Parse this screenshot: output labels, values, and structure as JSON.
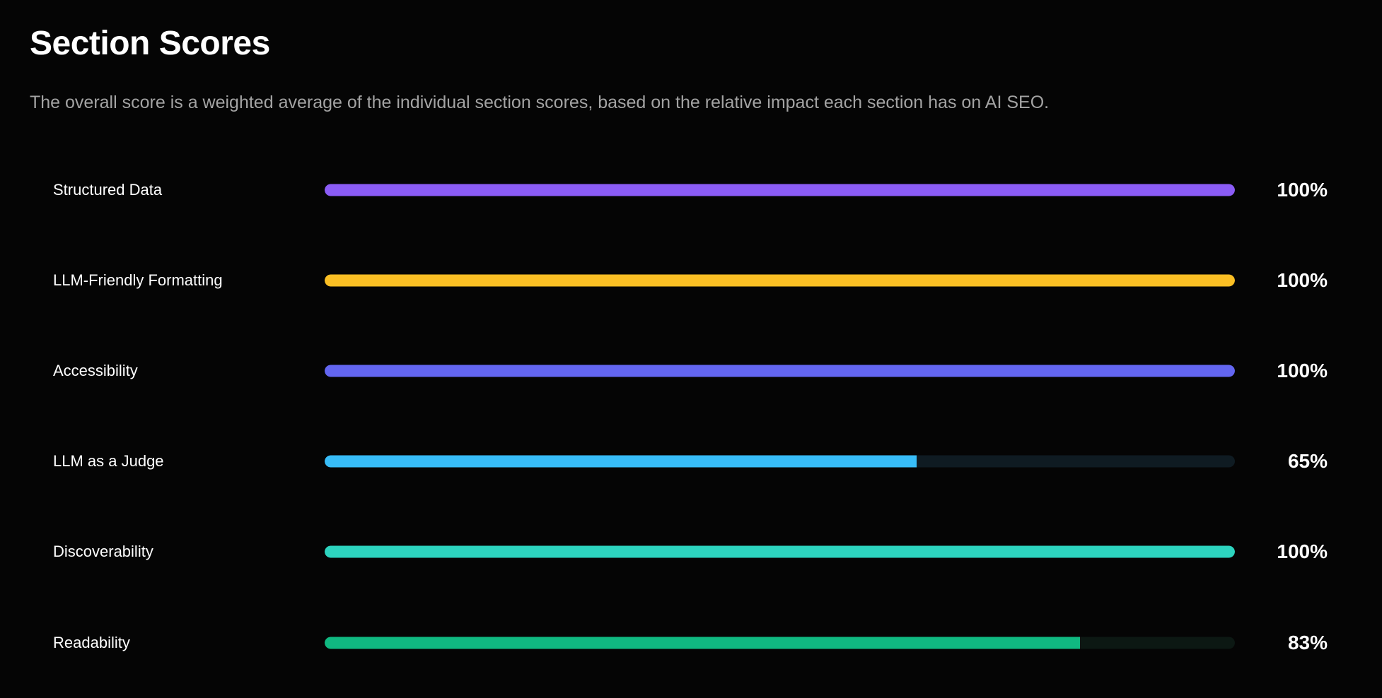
{
  "header": {
    "title": "Section Scores",
    "subtitle": "The overall score is a weighted average of the individual section scores, based on the relative impact each section has on AI SEO."
  },
  "sections": [
    {
      "label": "Structured Data",
      "score": 100,
      "score_text": "100%",
      "color": "#8b5cf6",
      "track": "#1a1230"
    },
    {
      "label": "LLM-Friendly Formatting",
      "score": 100,
      "score_text": "100%",
      "color": "#fbbf24",
      "track": "#221a08"
    },
    {
      "label": "Accessibility",
      "score": 100,
      "score_text": "100%",
      "color": "#6366f1",
      "track": "#13142b"
    },
    {
      "label": "LLM as a Judge",
      "score": 65,
      "score_text": "65%",
      "color": "#38bdf8",
      "track": "#0f1b22"
    },
    {
      "label": "Discoverability",
      "score": 100,
      "score_text": "100%",
      "color": "#2dd4bf",
      "track": "#0b1f1c"
    },
    {
      "label": "Readability",
      "score": 83,
      "score_text": "83%",
      "color": "#10b981",
      "track": "#0c1813"
    }
  ]
}
